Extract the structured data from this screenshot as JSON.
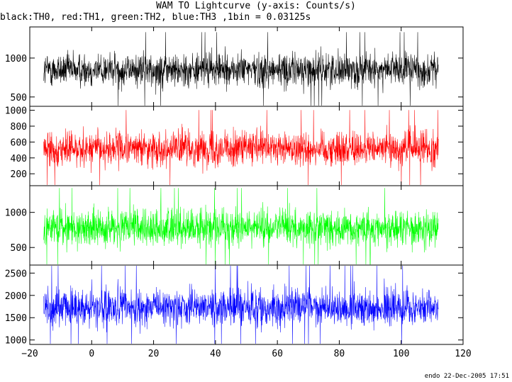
{
  "chart_data": {
    "type": "line",
    "title": "WAM TO Lightcurve (y-axis: Counts/s)",
    "subtitle": "black:TH0, red:TH1, green:TH2, blue:TH3 ,1bin = 0.03125s",
    "xlim": [
      -20,
      120
    ],
    "x_ticks": [
      -20,
      0,
      20,
      40,
      60,
      80,
      100,
      120
    ],
    "data_x_range": [
      -15.5,
      112
    ],
    "series": [
      {
        "name": "TH0",
        "color": "#000000",
        "ylim": [
          380,
          1400
        ],
        "y_ticks": [
          500,
          1000
        ],
        "mean": 850,
        "amplitude": 230
      },
      {
        "name": "TH1",
        "color": "#ff0000",
        "ylim": [
          50,
          1050
        ],
        "y_ticks": [
          200,
          400,
          600,
          800,
          1000
        ],
        "mean": 520,
        "amplitude": 230
      },
      {
        "name": "TH2",
        "color": "#00ff00",
        "ylim": [
          250,
          1380
        ],
        "y_ticks": [
          500,
          1000
        ],
        "mean": 780,
        "amplitude": 270
      },
      {
        "name": "TH3",
        "color": "#0000ff",
        "ylim": [
          900,
          2680
        ],
        "y_ticks": [
          1000,
          1500,
          2000,
          2500
        ],
        "mean": 1730,
        "amplitude": 450
      }
    ]
  },
  "footer": "endo 22-Dec-2005 17:51"
}
